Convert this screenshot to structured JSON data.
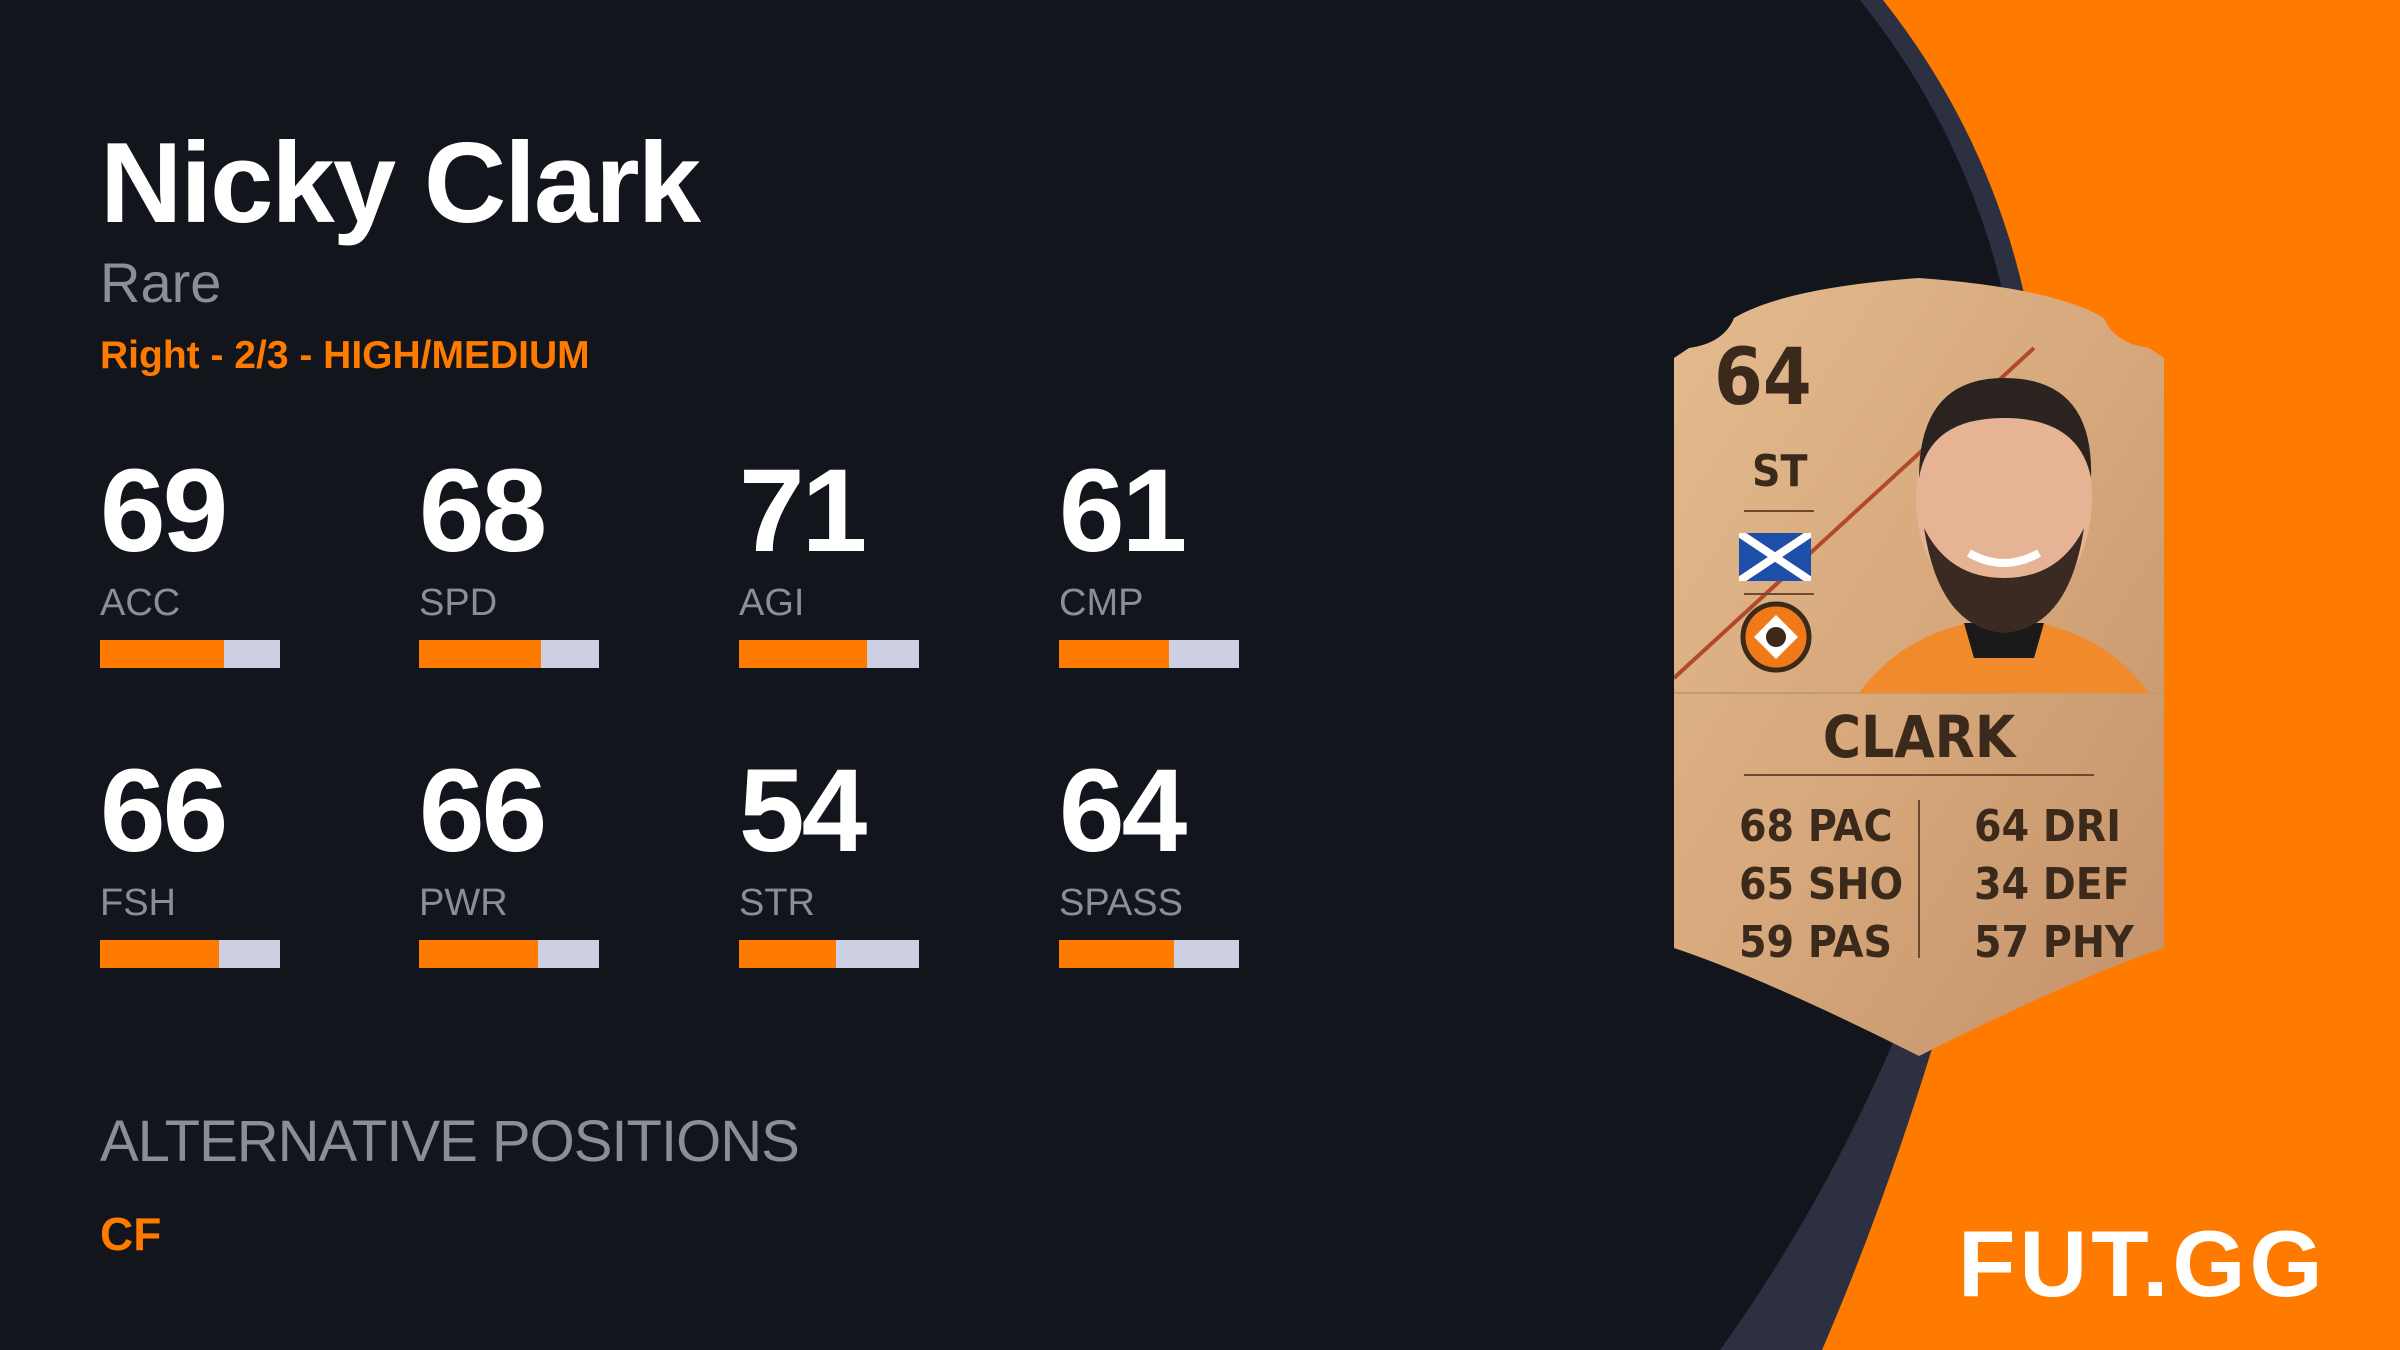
{
  "player": {
    "name": "Nicky Clark",
    "rarity": "Rare",
    "info": "Right - 2/3 - HIGH/MEDIUM"
  },
  "stats": [
    {
      "label": "ACC",
      "value": "69",
      "fill": 69
    },
    {
      "label": "SPD",
      "value": "68",
      "fill": 68
    },
    {
      "label": "AGI",
      "value": "71",
      "fill": 71
    },
    {
      "label": "CMP",
      "value": "61",
      "fill": 61
    },
    {
      "label": "FSH",
      "value": "66",
      "fill": 66
    },
    {
      "label": "PWR",
      "value": "66",
      "fill": 66
    },
    {
      "label": "STR",
      "value": "54",
      "fill": 54
    },
    {
      "label": "SPASS",
      "value": "64",
      "fill": 64
    }
  ],
  "alternative_positions": {
    "heading": "ALTERNATIVE POSITIONS",
    "values": "CF"
  },
  "card": {
    "rating": "64",
    "position": "ST",
    "name": "CLARK",
    "left_stats": [
      "68 PAC",
      "65 SHO",
      "59 PAS"
    ],
    "right_stats": [
      "64 DRI",
      "34 DEF",
      "57 PHY"
    ],
    "nation_flag": "scotland-flag-icon",
    "club_badge": "dundee-united-badge-icon"
  },
  "brand": {
    "logo": "FUT.GG"
  },
  "colors": {
    "background": "#13151d",
    "accent": "#ff7b00",
    "bar_track": "#cdd0e2",
    "muted_text": "#8b8d98",
    "card_gold": "#d9ad80"
  }
}
